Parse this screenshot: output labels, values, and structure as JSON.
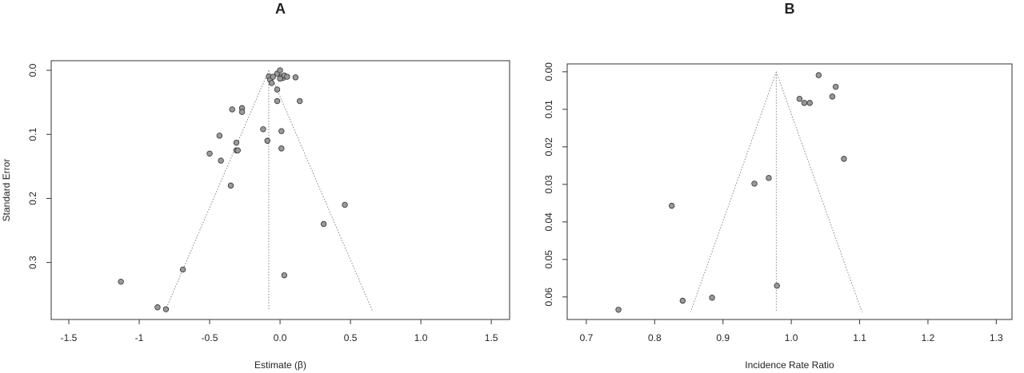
{
  "chart_data": [
    {
      "type": "funnel",
      "title": "A",
      "x_label": "Estimate (β)",
      "y_label": "Standard Error",
      "x": [
        -0.08,
        -0.07,
        -0.05,
        -0.02,
        0.0,
        0.01,
        0.02,
        0.03,
        0.05,
        0.11,
        0.0,
        -0.06,
        -0.02,
        -0.02,
        0.14,
        -0.34,
        -0.27,
        -0.27,
        -0.12,
        0.01,
        -0.43,
        -0.31,
        -0.09,
        -0.5,
        -0.31,
        -0.3,
        0.01,
        -0.42,
        -0.35,
        0.46,
        0.31,
        -0.69,
        0.03,
        -1.13,
        -0.87,
        -0.81
      ],
      "values": [
        0.01,
        0.015,
        0.01,
        0.005,
        0.0,
        0.01,
        0.012,
        0.008,
        0.01,
        0.011,
        0.013,
        0.02,
        0.03,
        0.048,
        0.048,
        0.061,
        0.059,
        0.065,
        0.092,
        0.095,
        0.102,
        0.113,
        0.11,
        0.13,
        0.125,
        0.125,
        0.122,
        0.141,
        0.18,
        0.21,
        0.24,
        0.311,
        0.32,
        0.33,
        0.37,
        0.373
      ],
      "color": "#999999",
      "funnel": {
        "center": -0.08,
        "se_max": 0.375,
        "z": 1.96
      },
      "xlim": [
        -1.625,
        1.63
      ],
      "ylim": [
        0.389,
        -0.015
      ],
      "xticks": [
        -1.5,
        -1.0,
        -0.5,
        {
          "value": 0,
          "label": "0.0"
        },
        0.5,
        {
          "value": 1,
          "label": "1.0"
        },
        1.5
      ],
      "yticks": [
        {
          "value": 0,
          "label": "0.0"
        },
        0.1,
        0.2,
        0.3
      ]
    },
    {
      "type": "funnel",
      "title": "B",
      "x_label": "Incidence Rate Ratio",
      "x": [
        1.04,
        1.065,
        1.012,
        1.019,
        1.027,
        1.06,
        1.077,
        0.967,
        0.946,
        0.825,
        0.979,
        0.884,
        0.841,
        0.747
      ],
      "values": [
        0.0009,
        0.004,
        0.0072,
        0.0083,
        0.0083,
        0.0066,
        0.0232,
        0.0283,
        0.0298,
        0.0357,
        0.057,
        0.0602,
        0.061,
        0.0634
      ],
      "color": "#999999",
      "funnel": {
        "center": 0.978,
        "se_max": 0.064,
        "z": 1.96
      },
      "xlim": [
        0.672,
        1.323
      ],
      "ylim": [
        0.066,
        -0.0021
      ],
      "xticks": [
        0.7,
        0.8,
        0.9,
        {
          "value": 1,
          "label": "1.0"
        },
        1.1,
        1.2,
        1.3
      ],
      "yticks": [
        {
          "value": 0,
          "label": "0.00"
        },
        0.01,
        0.02,
        0.03,
        0.04,
        0.05,
        0.06
      ]
    }
  ]
}
